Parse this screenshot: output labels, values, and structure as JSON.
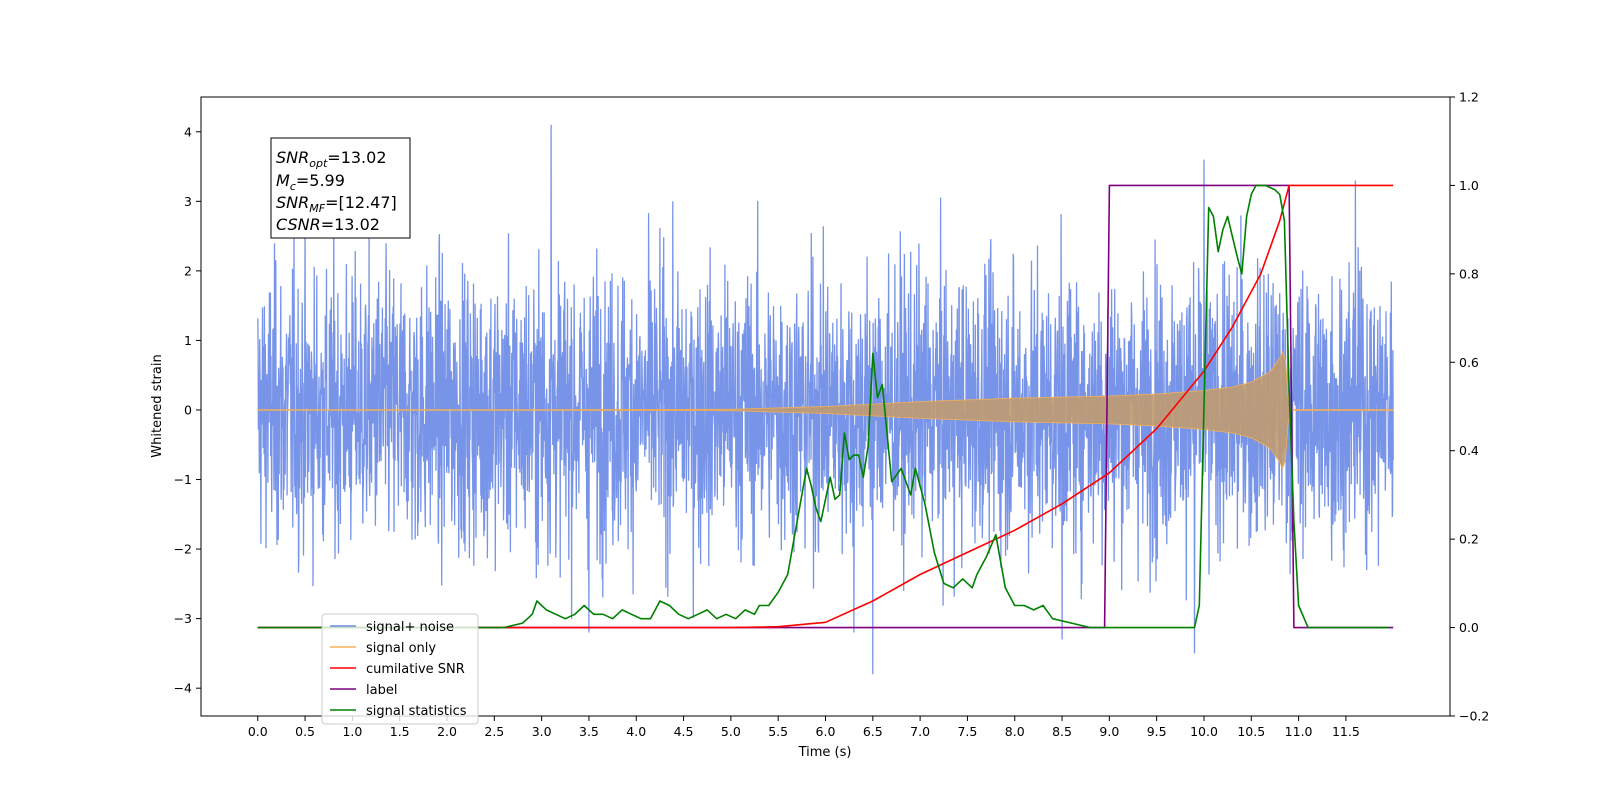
{
  "chart_data": {
    "type": "line",
    "xlabel": "Time (s)",
    "ylabel_left": "Whitened strain",
    "ylabel_right": "",
    "xlim": [
      -0.6,
      12.6
    ],
    "ylim_left": [
      -4.4,
      4.5
    ],
    "ylim_right": [
      -0.2,
      1.2
    ],
    "x_ticks": [
      "0.0",
      "0.5",
      "1.0",
      "1.5",
      "2.0",
      "2.5",
      "3.0",
      "3.5",
      "4.0",
      "4.5",
      "5.0",
      "5.5",
      "6.0",
      "6.5",
      "7.0",
      "7.5",
      "8.0",
      "8.5",
      "9.0",
      "9.5",
      "10.0",
      "10.5",
      "11.0",
      "11.5"
    ],
    "y_ticks_left": [
      "4",
      "3",
      "2",
      "1",
      "0",
      "−1",
      "−2",
      "−3",
      "−4"
    ],
    "y_ticks_right": [
      "1.2",
      "1.0",
      "0.8",
      "0.6",
      "0.4",
      "0.2",
      "0.0",
      "−0.2"
    ],
    "grid": false,
    "legend_position": "lower-left",
    "legend": [
      "signal+ noise",
      "signal only",
      "cumilative SNR",
      "label",
      "signal statistics"
    ],
    "annotation": [
      {
        "sym": "SNR",
        "sub": "opt",
        "value": "=13.02"
      },
      {
        "sym": "M",
        "sub": "c",
        "value": "=5.99"
      },
      {
        "sym": "SNR",
        "sub": "MF",
        "value": "=[12.47]"
      },
      {
        "sym": "CSNR",
        "sub": "",
        "value": "=13.02"
      }
    ],
    "colors": {
      "signal_noise": "#6b8be6",
      "signal_only": "#f5b055",
      "cumulative_snr": "#ff0000",
      "label": "#7f007f",
      "signal_statistics": "#008000"
    },
    "series": [
      {
        "name": "signal+ noise",
        "axis": "left",
        "x_range": [
          0.0,
          12.0
        ],
        "envelope_typical": [
          -1.6,
          1.6
        ],
        "peaks": [
          [
            3.1,
            4.1
          ],
          [
            10.0,
            3.6
          ],
          [
            11.6,
            3.3
          ],
          [
            6.5,
            -3.8
          ],
          [
            8.5,
            -3.3
          ],
          [
            9.9,
            -3.5
          ],
          [
            3.5,
            -3.2
          ],
          [
            6.3,
            -3.2
          ]
        ]
      },
      {
        "name": "signal only",
        "axis": "left",
        "x": [
          0.0,
          5.0,
          6.0,
          7.0,
          8.0,
          9.0,
          9.5,
          10.0,
          10.3,
          10.5,
          10.7,
          10.8,
          10.85,
          10.9,
          12.0
        ],
        "amplitude": [
          0.0,
          0.01,
          0.05,
          0.12,
          0.17,
          0.2,
          0.23,
          0.28,
          0.33,
          0.4,
          0.55,
          0.75,
          0.9,
          0.0,
          0.0
        ]
      },
      {
        "name": "cumilative SNR",
        "axis": "right",
        "x": [
          0.0,
          5.0,
          5.5,
          6.0,
          6.5,
          7.0,
          7.5,
          8.0,
          8.5,
          9.0,
          9.5,
          10.0,
          10.3,
          10.6,
          10.8,
          10.9,
          12.0
        ],
        "y": [
          0.0,
          0.0,
          0.002,
          0.012,
          0.06,
          0.12,
          0.17,
          0.22,
          0.28,
          0.35,
          0.45,
          0.58,
          0.68,
          0.8,
          0.92,
          1.0,
          1.0
        ]
      },
      {
        "name": "label",
        "axis": "right",
        "x": [
          0.0,
          8.95,
          9.0,
          10.9,
          10.95,
          12.0
        ],
        "y": [
          0.0,
          0.0,
          1.0,
          1.0,
          0.0,
          0.0
        ]
      },
      {
        "name": "signal statistics",
        "axis": "right",
        "x": [
          0.0,
          2.6,
          2.8,
          2.9,
          2.95,
          3.05,
          3.15,
          3.25,
          3.35,
          3.45,
          3.55,
          3.65,
          3.75,
          3.85,
          3.95,
          4.05,
          4.15,
          4.25,
          4.35,
          4.45,
          4.55,
          4.65,
          4.75,
          4.85,
          4.95,
          5.05,
          5.15,
          5.25,
          5.3,
          5.4,
          5.5,
          5.6,
          5.7,
          5.8,
          5.85,
          5.9,
          5.95,
          6.0,
          6.05,
          6.1,
          6.15,
          6.2,
          6.25,
          6.3,
          6.35,
          6.4,
          6.45,
          6.5,
          6.55,
          6.6,
          6.7,
          6.8,
          6.9,
          6.95,
          7.05,
          7.15,
          7.25,
          7.35,
          7.45,
          7.55,
          7.6,
          7.7,
          7.8,
          7.9,
          8.0,
          8.1,
          8.2,
          8.3,
          8.4,
          8.6,
          8.8,
          9.0,
          9.5,
          9.8,
          9.9,
          9.95,
          10.0,
          10.05,
          10.1,
          10.15,
          10.2,
          10.25,
          10.35,
          10.4,
          10.45,
          10.5,
          10.55,
          10.65,
          10.75,
          10.8,
          10.85,
          10.9,
          10.95,
          11.0,
          11.1,
          11.2,
          11.3,
          11.5,
          11.8,
          11.95
        ],
        "y": [
          0.0,
          0.0,
          0.01,
          0.03,
          0.06,
          0.04,
          0.03,
          0.02,
          0.03,
          0.05,
          0.03,
          0.03,
          0.02,
          0.04,
          0.03,
          0.02,
          0.02,
          0.06,
          0.05,
          0.03,
          0.02,
          0.03,
          0.04,
          0.02,
          0.03,
          0.02,
          0.04,
          0.03,
          0.05,
          0.05,
          0.08,
          0.12,
          0.24,
          0.36,
          0.32,
          0.27,
          0.24,
          0.29,
          0.34,
          0.29,
          0.3,
          0.44,
          0.38,
          0.39,
          0.39,
          0.34,
          0.41,
          0.62,
          0.52,
          0.55,
          0.33,
          0.36,
          0.3,
          0.36,
          0.28,
          0.17,
          0.1,
          0.09,
          0.11,
          0.09,
          0.12,
          0.16,
          0.21,
          0.09,
          0.05,
          0.05,
          0.04,
          0.05,
          0.02,
          0.01,
          0.0,
          0.0,
          0.0,
          0.0,
          0.0,
          0.05,
          0.5,
          0.95,
          0.93,
          0.85,
          0.9,
          0.93,
          0.84,
          0.8,
          0.93,
          0.98,
          1.0,
          1.0,
          0.99,
          0.98,
          0.92,
          0.54,
          0.24,
          0.05,
          0.0,
          0.0,
          0.0,
          0.0,
          0.0,
          0.0
        ]
      }
    ]
  }
}
